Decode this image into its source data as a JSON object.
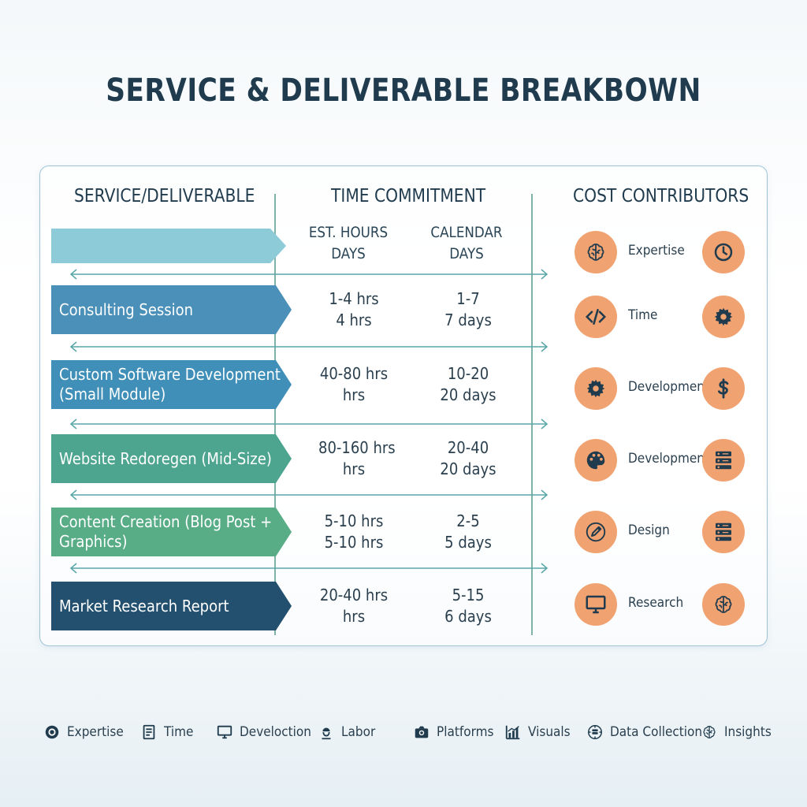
{
  "title": "SERVICE & DELIVERABLE BREAKBOWN",
  "table": {
    "col_service": "SERVICE/DELIVERABLE",
    "col_time": "TIME COMMITMENT",
    "col_cost": "COST CONTRIBUTORS",
    "sub_hours_l1": "EST. HOURS",
    "sub_hours_l2": "DAYS",
    "sub_days_l1": "CALENDAR",
    "sub_days_l2": "DAYS",
    "rows": [
      {
        "service_l1": "Consulting Session",
        "service_l2": "",
        "hours_l1": "1-4 hrs",
        "hours_l2": "4 hrs",
        "days_l1": "1-7",
        "days_l2": "7 days",
        "color": "#4a90b8"
      },
      {
        "service_l1": "Custom Software Development",
        "service_l2": "(Small Module)",
        "hours_l1": "40-80 hrs",
        "hours_l2": "hrs",
        "days_l1": "10-20",
        "days_l2": "20 days",
        "color": "#3f8fb8"
      },
      {
        "service_l1": "Website Redoregen (Mid-Size)",
        "service_l2": "",
        "hours_l1": "80-160 hrs",
        "hours_l2": "hrs",
        "days_l1": "20-40",
        "days_l2": "20 days",
        "color": "#4da58f"
      },
      {
        "service_l1": "Content Creation (Blog Post +",
        "service_l2": "Graphics)",
        "hours_l1": "5-10 hrs",
        "hours_l2": "5-10 hrs",
        "days_l1": "2-5",
        "days_l2": "5 days",
        "color": "#58ad87"
      },
      {
        "service_l1": "Market Research Report",
        "service_l2": "",
        "hours_l1": "20-40 hrs",
        "hours_l2": "hrs",
        "days_l1": "5-15",
        "days_l2": "6 days",
        "color": "#22506e"
      }
    ],
    "cost": [
      {
        "label": "Expertise",
        "left_icon": "brain-icon",
        "right_icon": "clock-icon"
      },
      {
        "label": "Time",
        "left_icon": "code-icon",
        "right_icon": "gear-icon"
      },
      {
        "label": "Development",
        "left_icon": "gear-icon",
        "right_icon": "dollar-icon"
      },
      {
        "label": "Development",
        "left_icon": "palette-icon",
        "right_icon": "server-icon"
      },
      {
        "label": "Design",
        "left_icon": "pen-icon",
        "right_icon": "server-icon"
      },
      {
        "label": "Research",
        "left_icon": "monitor-icon",
        "right_icon": "brain-icon"
      }
    ]
  },
  "legend": [
    {
      "label": "Expertise",
      "icon": "target-icon"
    },
    {
      "label": "Time",
      "icon": "document-icon"
    },
    {
      "label": "Develoction",
      "icon": "monitor-icon"
    },
    {
      "label": "Labor",
      "icon": "worker-icon"
    },
    {
      "label": "Platforms",
      "icon": "camera-icon"
    },
    {
      "label": "Visuals",
      "icon": "bar-chart-icon"
    },
    {
      "label": "Data Collection",
      "icon": "database-icon"
    },
    {
      "label": "Insights",
      "icon": "brain-icon"
    }
  ],
  "colors": {
    "accent": "#f0a271",
    "icon_dark": "#1f3b4d",
    "light_ribbon": "#8ecbd9"
  }
}
